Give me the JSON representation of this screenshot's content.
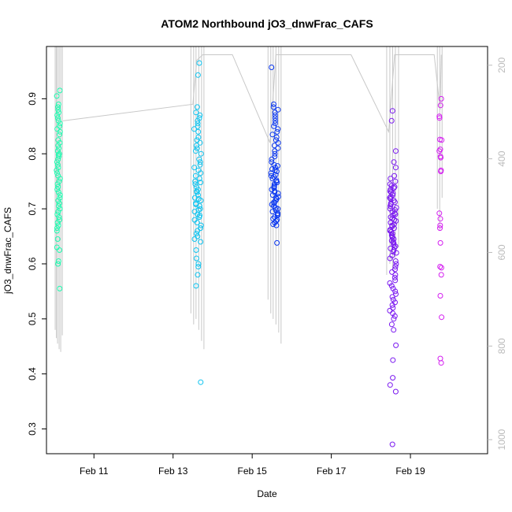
{
  "chart_data": {
    "type": "scatter",
    "title": "ATOM2 Northbound jO3_dnwFrac_CAFS",
    "xlabel": "Date",
    "ylabel": "jO3_dnwFrac_CAFS",
    "x_axis": {
      "unit": "days",
      "range": [
        9.8,
        20.95
      ],
      "ticks": [
        {
          "value": 11,
          "label": "Feb 11"
        },
        {
          "value": 13,
          "label": "Feb 13"
        },
        {
          "value": 15,
          "label": "Feb 15"
        },
        {
          "value": 17,
          "label": "Feb 17"
        },
        {
          "value": 19,
          "label": "Feb 19"
        }
      ]
    },
    "y_axis": {
      "range": [
        0.255,
        0.995
      ],
      "ticks": [
        0.3,
        0.4,
        0.5,
        0.6,
        0.7,
        0.8,
        0.9
      ]
    },
    "y2_axis": {
      "range": [
        1030,
        160
      ],
      "ticks": [
        200,
        400,
        600,
        800,
        1000
      ],
      "color": "#bbbbbb"
    },
    "flight_path": {
      "color": "#c8c8c8",
      "points": [
        [
          10.22,
          0.86
        ],
        [
          13.5,
          0.89
        ],
        [
          13.6,
          0.97
        ],
        [
          13.75,
          0.98
        ],
        [
          14.5,
          0.98
        ],
        [
          15.45,
          0.82
        ],
        [
          15.6,
          0.98
        ],
        [
          15.9,
          0.98
        ],
        [
          17.5,
          0.98
        ],
        [
          18.45,
          0.84
        ],
        [
          18.6,
          0.98
        ],
        [
          18.9,
          0.98
        ],
        [
          19.6,
          0.98
        ],
        [
          19.75,
          0.88
        ],
        [
          19.78,
          0.98
        ]
      ]
    },
    "profiles": [
      {
        "x": 10.02,
        "ybot": 0.48
      },
      {
        "x": 10.05,
        "ybot": 0.465
      },
      {
        "x": 10.08,
        "ybot": 0.455
      },
      {
        "x": 10.12,
        "ybot": 0.445
      },
      {
        "x": 10.16,
        "ybot": 0.44
      },
      {
        "x": 10.2,
        "ybot": 0.47
      },
      {
        "x": 13.45,
        "ybot": 0.51
      },
      {
        "x": 13.52,
        "ybot": 0.49
      },
      {
        "x": 13.58,
        "ybot": 0.5
      },
      {
        "x": 13.65,
        "ybot": 0.48
      },
      {
        "x": 13.72,
        "ybot": 0.46
      },
      {
        "x": 13.78,
        "ybot": 0.445
      },
      {
        "x": 15.4,
        "ybot": 0.535
      },
      {
        "x": 15.47,
        "ybot": 0.51
      },
      {
        "x": 15.53,
        "ybot": 0.5
      },
      {
        "x": 15.6,
        "ybot": 0.49
      },
      {
        "x": 15.67,
        "ybot": 0.475
      },
      {
        "x": 15.73,
        "ybot": 0.455
      },
      {
        "x": 18.4,
        "ybot": 0.58
      },
      {
        "x": 18.48,
        "ybot": 0.6
      },
      {
        "x": 18.55,
        "ybot": 0.59
      },
      {
        "x": 18.62,
        "ybot": 0.61
      },
      {
        "x": 18.7,
        "ybot": 0.63
      },
      {
        "x": 19.68,
        "ybot": 0.7
      },
      {
        "x": 19.74,
        "ybot": 0.66
      },
      {
        "x": 19.8,
        "ybot": 0.72
      }
    ],
    "series": [
      {
        "color": "#1dfcb0",
        "x_center": 10.1,
        "x_spread": 0.09,
        "values": [
          0.915,
          0.905,
          0.89,
          0.885,
          0.88,
          0.875,
          0.87,
          0.865,
          0.86,
          0.855,
          0.85,
          0.845,
          0.84,
          0.835,
          0.825,
          0.82,
          0.815,
          0.81,
          0.805,
          0.8,
          0.798,
          0.795,
          0.79,
          0.785,
          0.78,
          0.775,
          0.77,
          0.765,
          0.76,
          0.755,
          0.75,
          0.745,
          0.74,
          0.735,
          0.73,
          0.725,
          0.72,
          0.715,
          0.71,
          0.705,
          0.7,
          0.695,
          0.69,
          0.685,
          0.68,
          0.675,
          0.67,
          0.665,
          0.66,
          0.645,
          0.63,
          0.625,
          0.605,
          0.6,
          0.555
        ]
      },
      {
        "color": "#0ec4f0",
        "x_center": 13.62,
        "x_spread": 0.18,
        "values": [
          0.965,
          0.943,
          0.885,
          0.875,
          0.87,
          0.865,
          0.86,
          0.855,
          0.85,
          0.845,
          0.84,
          0.83,
          0.825,
          0.82,
          0.815,
          0.81,
          0.805,
          0.8,
          0.79,
          0.785,
          0.78,
          0.775,
          0.77,
          0.765,
          0.76,
          0.755,
          0.75,
          0.748,
          0.745,
          0.74,
          0.735,
          0.732,
          0.73,
          0.725,
          0.72,
          0.718,
          0.715,
          0.71,
          0.708,
          0.705,
          0.7,
          0.698,
          0.695,
          0.69,
          0.688,
          0.685,
          0.68,
          0.675,
          0.67,
          0.665,
          0.66,
          0.655,
          0.65,
          0.645,
          0.64,
          0.625,
          0.61,
          0.6,
          0.595,
          0.58,
          0.56,
          0.385
        ]
      },
      {
        "color": "#0a37f0",
        "x_center": 15.57,
        "x_spread": 0.19,
        "values": [
          0.957,
          0.89,
          0.885,
          0.88,
          0.875,
          0.87,
          0.865,
          0.86,
          0.855,
          0.85,
          0.845,
          0.84,
          0.835,
          0.83,
          0.825,
          0.82,
          0.815,
          0.81,
          0.805,
          0.8,
          0.795,
          0.79,
          0.785,
          0.78,
          0.778,
          0.775,
          0.772,
          0.77,
          0.768,
          0.765,
          0.762,
          0.76,
          0.758,
          0.755,
          0.752,
          0.75,
          0.748,
          0.745,
          0.742,
          0.74,
          0.738,
          0.735,
          0.732,
          0.73,
          0.728,
          0.725,
          0.722,
          0.72,
          0.718,
          0.715,
          0.712,
          0.71,
          0.708,
          0.705,
          0.702,
          0.7,
          0.698,
          0.695,
          0.692,
          0.69,
          0.688,
          0.685,
          0.682,
          0.68,
          0.678,
          0.675,
          0.672,
          0.67,
          0.638
        ]
      },
      {
        "color": "#7a18f0",
        "x_center": 18.56,
        "x_spread": 0.17,
        "values": [
          0.878,
          0.86,
          0.805,
          0.785,
          0.775,
          0.76,
          0.755,
          0.75,
          0.745,
          0.742,
          0.74,
          0.738,
          0.735,
          0.732,
          0.73,
          0.728,
          0.725,
          0.722,
          0.72,
          0.718,
          0.715,
          0.712,
          0.71,
          0.708,
          0.705,
          0.702,
          0.7,
          0.698,
          0.695,
          0.692,
          0.69,
          0.688,
          0.685,
          0.682,
          0.68,
          0.678,
          0.675,
          0.672,
          0.67,
          0.668,
          0.665,
          0.662,
          0.66,
          0.658,
          0.655,
          0.652,
          0.65,
          0.648,
          0.645,
          0.642,
          0.64,
          0.638,
          0.635,
          0.632,
          0.63,
          0.628,
          0.625,
          0.622,
          0.62,
          0.615,
          0.61,
          0.605,
          0.6,
          0.595,
          0.59,
          0.585,
          0.58,
          0.575,
          0.57,
          0.565,
          0.56,
          0.555,
          0.55,
          0.545,
          0.54,
          0.535,
          0.53,
          0.525,
          0.52,
          0.515,
          0.51,
          0.505,
          0.5,
          0.49,
          0.48,
          0.452,
          0.425,
          0.393,
          0.38,
          0.368,
          0.272
        ]
      },
      {
        "color": "#d41ef0",
        "x_center": 19.76,
        "x_spread": 0.06,
        "values": [
          0.9,
          0.888,
          0.868,
          0.865,
          0.826,
          0.825,
          0.808,
          0.805,
          0.795,
          0.793,
          0.77,
          0.768,
          0.692,
          0.682,
          0.67,
          0.665,
          0.638,
          0.595,
          0.593,
          0.58,
          0.542,
          0.503,
          0.428,
          0.42
        ]
      }
    ]
  }
}
